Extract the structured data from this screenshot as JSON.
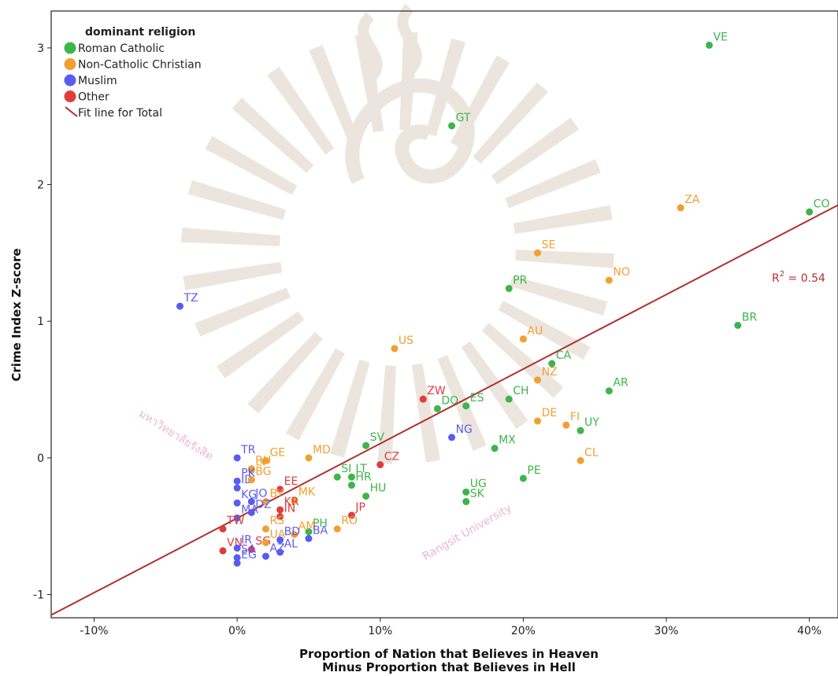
{
  "chart_data": {
    "type": "scatter",
    "xlabel": [
      "Proportion of Nation that Believes in Heaven",
      "Minus Proportion that Believes in Hell"
    ],
    "ylabel": "Crime Index Z-score",
    "xlim": [
      -0.13,
      0.42
    ],
    "ylim": [
      -1.17,
      3.27
    ],
    "x_ticks": [
      -0.1,
      0,
      0.1,
      0.2,
      0.3,
      0.4
    ],
    "x_tick_labels": [
      "-10%",
      "0%",
      "10%",
      "20%",
      "30%",
      "40%"
    ],
    "y_ticks": [
      -1,
      0,
      1,
      2,
      3
    ],
    "y_tick_labels": [
      "-1",
      "0",
      "1",
      "2",
      "3"
    ],
    "grid": false,
    "legend": {
      "title": "dominant religion",
      "placement": "top-left",
      "entries": [
        {
          "key": "catholic",
          "label": "Roman Catholic",
          "color": "#3cb54a"
        },
        {
          "key": "christian",
          "label": "Non-Catholic Christian",
          "color": "#f0a030"
        },
        {
          "key": "muslim",
          "label": "Muslim",
          "color": "#5b5bf0"
        },
        {
          "key": "other",
          "label": "Other",
          "color": "#e03c3c"
        }
      ],
      "fit_label": "Fit line for Total",
      "fit_color": "#b03030"
    },
    "fit_line": {
      "x": [
        -0.13,
        0.42
      ],
      "y": [
        -1.15,
        1.85
      ]
    },
    "r2_label": "R",
    "r2_sup": "2",
    "r2_value": " = 0.54",
    "points": [
      {
        "label": "VE",
        "x": 0.33,
        "y": 3.02,
        "group": "catholic"
      },
      {
        "label": "GT",
        "x": 0.15,
        "y": 2.43,
        "group": "catholic"
      },
      {
        "label": "CO",
        "x": 0.4,
        "y": 1.8,
        "group": "catholic"
      },
      {
        "label": "ZA",
        "x": 0.31,
        "y": 1.83,
        "group": "christian"
      },
      {
        "label": "SE",
        "x": 0.21,
        "y": 1.5,
        "group": "christian"
      },
      {
        "label": "NO",
        "x": 0.26,
        "y": 1.3,
        "group": "christian"
      },
      {
        "label": "PR",
        "x": 0.19,
        "y": 1.24,
        "group": "catholic"
      },
      {
        "label": "TZ",
        "x": -0.04,
        "y": 1.11,
        "group": "muslim"
      },
      {
        "label": "BR",
        "x": 0.35,
        "y": 0.97,
        "group": "catholic"
      },
      {
        "label": "AU",
        "x": 0.2,
        "y": 0.87,
        "group": "christian"
      },
      {
        "label": "US",
        "x": 0.11,
        "y": 0.8,
        "group": "christian"
      },
      {
        "label": "CA",
        "x": 0.22,
        "y": 0.69,
        "group": "catholic"
      },
      {
        "label": "AR",
        "x": 0.26,
        "y": 0.49,
        "group": "catholic"
      },
      {
        "label": "CH",
        "x": 0.19,
        "y": 0.43,
        "group": "catholic"
      },
      {
        "label": "NZ",
        "x": 0.21,
        "y": 0.57,
        "group": "christian"
      },
      {
        "label": "ZW",
        "x": 0.13,
        "y": 0.43,
        "group": "other"
      },
      {
        "label": "DO",
        "x": 0.14,
        "y": 0.36,
        "group": "catholic"
      },
      {
        "label": "ES",
        "x": 0.16,
        "y": 0.38,
        "group": "catholic"
      },
      {
        "label": "DE",
        "x": 0.21,
        "y": 0.27,
        "group": "christian"
      },
      {
        "label": "FI",
        "x": 0.23,
        "y": 0.24,
        "group": "christian"
      },
      {
        "label": "UY",
        "x": 0.24,
        "y": 0.2,
        "group": "catholic"
      },
      {
        "label": "NG",
        "x": 0.15,
        "y": 0.15,
        "group": "muslim"
      },
      {
        "label": "MX",
        "x": 0.18,
        "y": 0.07,
        "group": "catholic"
      },
      {
        "label": "SV",
        "x": 0.09,
        "y": 0.09,
        "group": "catholic"
      },
      {
        "label": "MD",
        "x": 0.05,
        "y": 0.0,
        "group": "christian"
      },
      {
        "label": "CL",
        "x": 0.24,
        "y": -0.02,
        "group": "christian"
      },
      {
        "label": "CZ",
        "x": 0.1,
        "y": -0.05,
        "group": "other"
      },
      {
        "label": "TR",
        "x": 0.0,
        "y": 0.0,
        "group": "muslim"
      },
      {
        "label": "GE",
        "x": 0.02,
        "y": -0.02,
        "group": "christian"
      },
      {
        "label": "LV",
        "x": 0.01,
        "y": -0.09,
        "group": "christian"
      },
      {
        "label": "RU",
        "x": 0.01,
        "y": -0.08,
        "group": "christian"
      },
      {
        "label": "SI",
        "x": 0.07,
        "y": -0.14,
        "group": "catholic"
      },
      {
        "label": "LT",
        "x": 0.08,
        "y": -0.14,
        "group": "catholic"
      },
      {
        "label": "PE",
        "x": 0.2,
        "y": -0.15,
        "group": "catholic"
      },
      {
        "label": "PK",
        "x": 0.0,
        "y": -0.17,
        "group": "muslim"
      },
      {
        "label": "ID",
        "x": 0.0,
        "y": -0.22,
        "group": "muslim"
      },
      {
        "label": "BG",
        "x": 0.01,
        "y": -0.16,
        "group": "christian"
      },
      {
        "label": "EE",
        "x": 0.03,
        "y": -0.23,
        "group": "other"
      },
      {
        "label": "HR",
        "x": 0.08,
        "y": -0.2,
        "group": "catholic"
      },
      {
        "label": "MK",
        "x": 0.04,
        "y": -0.31,
        "group": "christian"
      },
      {
        "label": "HU",
        "x": 0.09,
        "y": -0.28,
        "group": "catholic"
      },
      {
        "label": "UG",
        "x": 0.16,
        "y": -0.25,
        "group": "catholic"
      },
      {
        "label": "SK",
        "x": 0.16,
        "y": -0.32,
        "group": "catholic"
      },
      {
        "label": "KG",
        "x": 0.0,
        "y": -0.33,
        "group": "muslim"
      },
      {
        "label": "JO",
        "x": 0.01,
        "y": -0.32,
        "group": "muslim"
      },
      {
        "label": "BY",
        "x": 0.02,
        "y": -0.32,
        "group": "christian"
      },
      {
        "label": "DZ",
        "x": 0.01,
        "y": -0.4,
        "group": "muslim"
      },
      {
        "label": "MA",
        "x": 0.0,
        "y": -0.44,
        "group": "muslim"
      },
      {
        "label": "KR",
        "x": 0.03,
        "y": -0.38,
        "group": "other"
      },
      {
        "label": "IN",
        "x": 0.03,
        "y": -0.43,
        "group": "other"
      },
      {
        "label": "JP",
        "x": 0.08,
        "y": -0.42,
        "group": "other"
      },
      {
        "label": "TW",
        "x": -0.01,
        "y": -0.52,
        "group": "other"
      },
      {
        "label": "RS",
        "x": 0.02,
        "y": -0.52,
        "group": "christian"
      },
      {
        "label": "PH",
        "x": 0.05,
        "y": -0.54,
        "group": "catholic"
      },
      {
        "label": "RO",
        "x": 0.07,
        "y": -0.52,
        "group": "christian"
      },
      {
        "label": "VN",
        "x": -0.01,
        "y": -0.68,
        "group": "other"
      },
      {
        "label": "IR",
        "x": 0.0,
        "y": -0.66,
        "group": "muslim"
      },
      {
        "label": "SG",
        "x": 0.01,
        "y": -0.67,
        "group": "other"
      },
      {
        "label": "AM",
        "x": 0.04,
        "y": -0.56,
        "group": "christian"
      },
      {
        "label": "BA",
        "x": 0.05,
        "y": -0.59,
        "group": "muslim"
      },
      {
        "label": "AL",
        "x": 0.03,
        "y": -0.69,
        "group": "muslim"
      },
      {
        "label": "SA",
        "x": 0.0,
        "y": -0.73,
        "group": "muslim"
      },
      {
        "label": "UA",
        "x": 0.02,
        "y": -0.62,
        "group": "christian"
      },
      {
        "label": "BD",
        "x": 0.03,
        "y": -0.6,
        "group": "muslim"
      },
      {
        "label": "EG",
        "x": 0.0,
        "y": -0.77,
        "group": "muslim"
      },
      {
        "label": "AZ",
        "x": 0.02,
        "y": -0.72,
        "group": "muslim"
      }
    ]
  },
  "watermark": {
    "text_latin": "Rangsit University",
    "text_thai": "มหาวิทยาลัยรังสิต",
    "color": "#e9a8c7"
  }
}
